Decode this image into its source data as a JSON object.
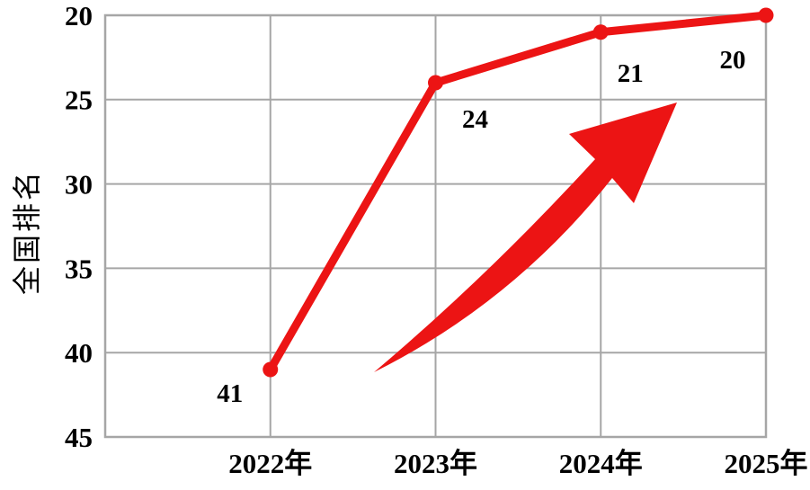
{
  "chart_data": {
    "type": "line",
    "title": "",
    "x": [
      "2022年",
      "2023年",
      "2024年",
      "2025年"
    ],
    "series": [
      {
        "name": "全国排名",
        "values": [
          41,
          24,
          21,
          20
        ],
        "color": "#EC1414"
      }
    ],
    "data_labels": [
      "41",
      "24",
      "21",
      "20"
    ],
    "xlabel": "",
    "ylabel": "全国排名",
    "y_ticks": [
      20,
      25,
      30,
      35,
      40,
      45
    ],
    "ylim": [
      20,
      45
    ],
    "y_axis_reversed": true,
    "grid": true,
    "legend": "none",
    "marker": "circle",
    "annotations": [
      {
        "type": "arrow",
        "name": "upward-trend-arrow",
        "color": "#EC1414",
        "description": "thick red tapered swoosh arrow pointing up-right across the plot"
      }
    ],
    "colors": {
      "series": "#EC1414",
      "grid": "#A6A6A6",
      "axis_text": "#000000",
      "background": "#FFFFFF"
    }
  }
}
